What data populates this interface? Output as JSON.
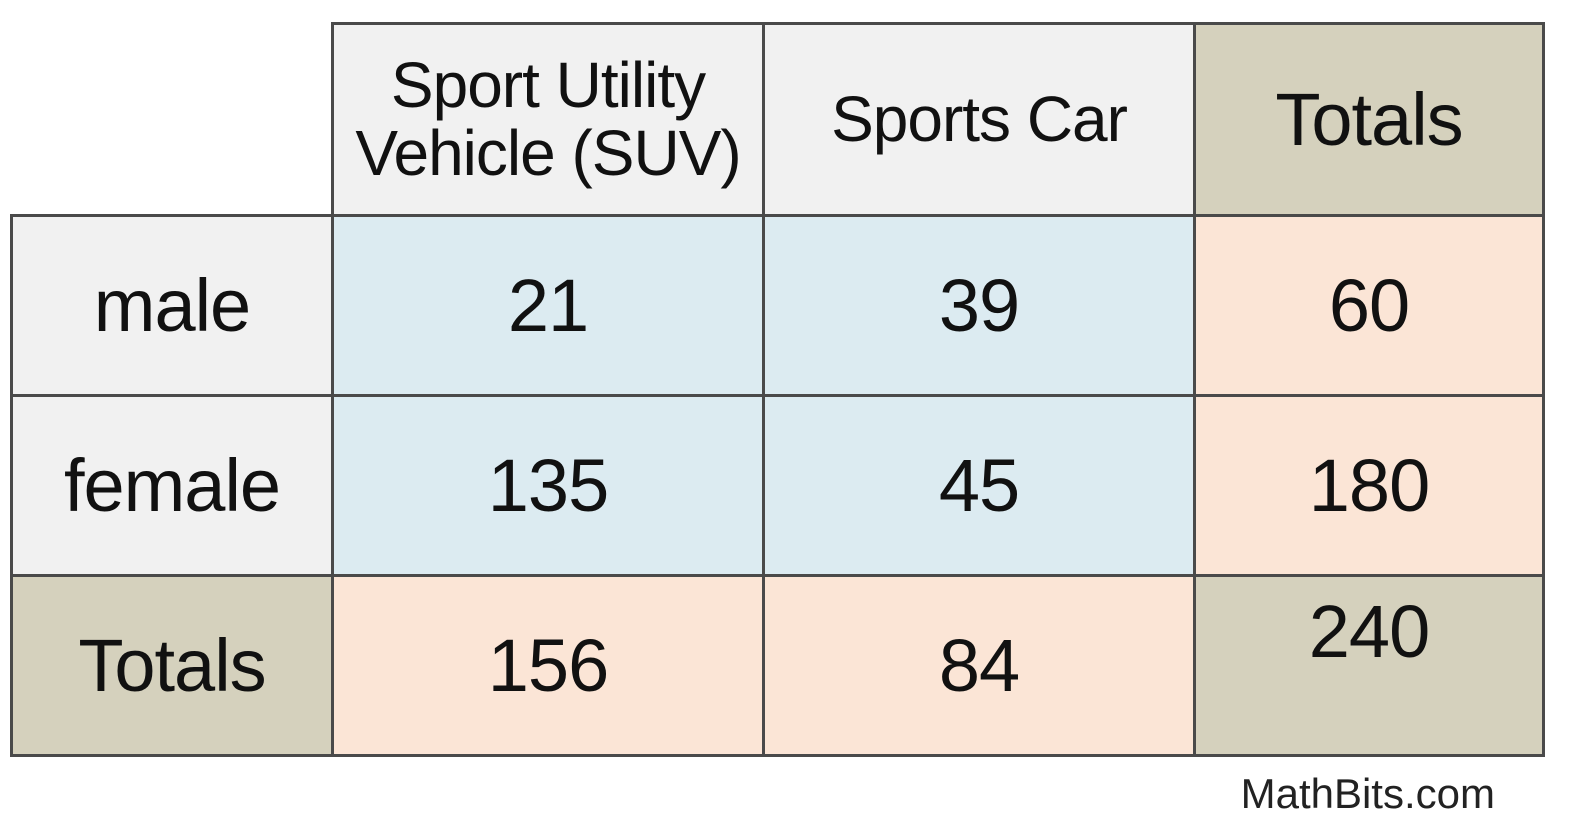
{
  "chart_data": {
    "type": "table",
    "columns": [
      "Sport Utility Vehicle (SUV)",
      "Sports Car",
      "Totals"
    ],
    "column_header_lines": [
      [
        "Sport Utility",
        "Vehicle (SUV)"
      ],
      [
        "Sports Car"
      ],
      [
        "Totals"
      ]
    ],
    "rows": [
      {
        "label": "male",
        "values": [
          "21",
          "39",
          "60"
        ]
      },
      {
        "label": "female",
        "values": [
          "135",
          "45",
          "180"
        ]
      },
      {
        "label": "Totals",
        "values": [
          "156",
          "84",
          "240"
        ]
      }
    ],
    "colors": {
      "header_light": "#f1f1f1",
      "header_tan": "#d5d1bd",
      "body_blue": "#dcebf1",
      "totals_peach": "#fbe5d6",
      "border": "#4a4a4a"
    }
  },
  "watermark": "MathBits.com"
}
